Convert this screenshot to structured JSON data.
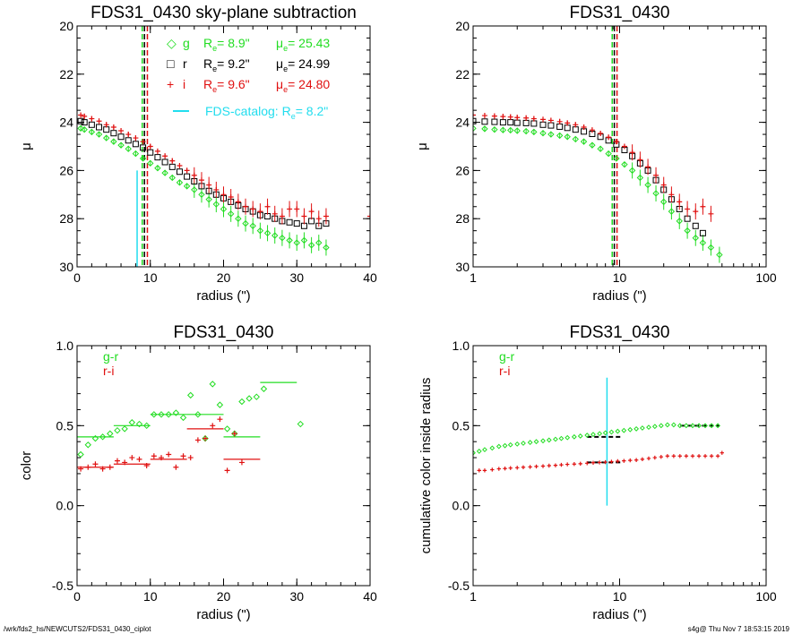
{
  "footer": {
    "path": "/wrk/fds2_hs/NEWCUTS2/FDS31_0430_ciplot",
    "stamp": "s4g@  Thu Nov  7 18:53:15 2019"
  },
  "chart_data": [
    {
      "type": "scatter",
      "title": "FDS31_0430 sky-plane subtraction",
      "xlabel": "radius (\")",
      "ylabel": "μ",
      "xlim": [
        0,
        40
      ],
      "ylim": [
        30,
        20
      ],
      "xscale": "linear",
      "xticks": [
        0,
        10,
        20,
        30,
        40
      ],
      "yticks": [
        20,
        22,
        24,
        26,
        28,
        30
      ],
      "legend": {
        "placement": "top-right",
        "entries": [
          {
            "marker": "◇",
            "band": "g",
            "re": "8.9\"",
            "mue": "25.43",
            "color": "#22dd22"
          },
          {
            "marker": "□",
            "band": "r",
            "re": "9.2\"",
            "mue": "24.99",
            "color": "#000000"
          },
          {
            "marker": "+",
            "band": "i",
            "re": "9.6\"",
            "mue": "24.80",
            "color": "#e01010"
          }
        ],
        "re_label": "R",
        "re_sub": "e",
        "mue_label": "μ",
        "mue_sub": "e",
        "catalog": {
          "label": "FDS-catalog: R",
          "sub": "e",
          "value": "8.2\"",
          "color": "#22ddee"
        }
      },
      "vlines": [
        {
          "x": 8.9,
          "color": "#22dd22",
          "dash": true
        },
        {
          "x": 9.2,
          "color": "#000000",
          "dash": true
        },
        {
          "x": 9.6,
          "color": "#e01010",
          "dash": true
        },
        {
          "x": 8.2,
          "color": "#22ddee",
          "y_from": 26.0,
          "y_to": 30
        }
      ],
      "series": [
        {
          "name": "g",
          "color": "#22dd22",
          "marker": "diamond",
          "x": [
            0.5,
            1,
            2,
            3,
            4,
            5,
            6,
            7,
            8,
            9,
            10,
            11,
            12,
            13,
            14,
            15,
            16,
            17,
            18,
            19,
            20,
            21,
            22,
            23,
            24,
            25,
            26,
            27,
            28,
            29,
            30,
            31,
            32,
            33,
            34
          ],
          "y": [
            24.25,
            24.3,
            24.4,
            24.5,
            24.65,
            24.8,
            24.95,
            25.1,
            25.3,
            25.5,
            25.7,
            25.9,
            26.1,
            26.3,
            26.5,
            26.65,
            26.8,
            27.0,
            27.2,
            27.4,
            27.6,
            27.8,
            28.0,
            28.2,
            28.3,
            28.5,
            28.6,
            28.7,
            28.8,
            28.9,
            29.0,
            28.9,
            29.1,
            29.0,
            29.2
          ]
        },
        {
          "name": "r",
          "color": "#000000",
          "marker": "square",
          "x": [
            0.5,
            1,
            2,
            3,
            4,
            5,
            6,
            7,
            8,
            9,
            10,
            11,
            12,
            13,
            14,
            15,
            16,
            17,
            18,
            19,
            20,
            21,
            22,
            23,
            24,
            25,
            26,
            27,
            28,
            29,
            30,
            31,
            32,
            33,
            34
          ],
          "y": [
            23.95,
            24.0,
            24.1,
            24.2,
            24.3,
            24.45,
            24.6,
            24.75,
            24.9,
            25.05,
            25.25,
            25.45,
            25.65,
            25.85,
            26.05,
            26.25,
            26.45,
            26.65,
            26.85,
            27.0,
            27.15,
            27.3,
            27.45,
            27.6,
            27.7,
            27.85,
            27.9,
            28.0,
            28.1,
            28.15,
            28.2,
            28.3,
            28.1,
            28.3,
            28.2
          ]
        },
        {
          "name": "i",
          "color": "#e01010",
          "marker": "plus",
          "x": [
            0.5,
            1,
            2,
            3,
            4,
            5,
            6,
            7,
            8,
            9,
            10,
            11,
            12,
            13,
            14,
            15,
            16,
            17,
            18,
            19,
            20,
            21,
            22,
            23,
            24,
            25,
            26,
            27,
            28,
            29,
            30,
            31,
            32,
            33,
            34,
            40
          ],
          "y": [
            23.7,
            23.75,
            23.85,
            23.95,
            24.1,
            24.2,
            24.35,
            24.5,
            24.65,
            24.8,
            25.0,
            25.2,
            25.4,
            25.6,
            25.8,
            26.0,
            26.2,
            26.4,
            26.6,
            26.8,
            27.0,
            27.1,
            27.3,
            27.5,
            27.6,
            27.7,
            27.5,
            27.8,
            27.9,
            27.6,
            27.6,
            27.9,
            27.7,
            28.0,
            27.9,
            27.9
          ]
        }
      ]
    },
    {
      "type": "scatter",
      "title": "FDS31_0430",
      "xlabel": "radius (\")",
      "ylabel": "μ",
      "xlim": [
        1,
        100
      ],
      "ylim": [
        30,
        20
      ],
      "xscale": "log",
      "xticks": [
        1,
        10,
        100
      ],
      "yticks": [
        20,
        22,
        24,
        26,
        28,
        30
      ],
      "vlines": [
        {
          "x": 8.9,
          "color": "#22dd22",
          "dash": true
        },
        {
          "x": 9.2,
          "color": "#000000",
          "dash": true
        },
        {
          "x": 9.6,
          "color": "#e01010",
          "dash": true
        }
      ],
      "series": [
        {
          "name": "g",
          "color": "#22dd22",
          "marker": "diamond",
          "x": [
            1,
            1.2,
            1.4,
            1.6,
            1.8,
            2,
            2.3,
            2.6,
            3,
            3.4,
            3.9,
            4.4,
            5,
            5.7,
            6.5,
            7.4,
            8.4,
            9.5,
            10.8,
            12.2,
            13.8,
            15.6,
            17.7,
            20,
            22.6,
            25.6,
            29,
            33,
            37,
            42,
            48
          ],
          "y": [
            24.25,
            24.27,
            24.3,
            24.32,
            24.33,
            24.35,
            24.37,
            24.4,
            24.45,
            24.5,
            24.55,
            24.6,
            24.7,
            24.8,
            24.95,
            25.1,
            25.3,
            25.5,
            25.75,
            26.0,
            26.3,
            26.6,
            26.95,
            27.3,
            27.7,
            28.1,
            28.5,
            28.8,
            29.0,
            29.2,
            29.5
          ]
        },
        {
          "name": "r",
          "color": "#000000",
          "marker": "square",
          "x": [
            1,
            1.2,
            1.4,
            1.6,
            1.8,
            2,
            2.3,
            2.6,
            3,
            3.4,
            3.9,
            4.4,
            5,
            5.7,
            6.5,
            7.4,
            8.4,
            9.5,
            10.8,
            12.2,
            13.8,
            15.6,
            17.7,
            20,
            22.6,
            25.6,
            29,
            33,
            37
          ],
          "y": [
            23.95,
            23.97,
            23.98,
            24.0,
            24.0,
            24.02,
            24.03,
            24.05,
            24.1,
            24.13,
            24.18,
            24.23,
            24.3,
            24.38,
            24.48,
            24.6,
            24.75,
            24.92,
            25.15,
            25.4,
            25.7,
            26.0,
            26.4,
            26.8,
            27.2,
            27.6,
            28.0,
            28.3,
            28.6
          ]
        },
        {
          "name": "i",
          "color": "#e01010",
          "marker": "plus",
          "x": [
            1,
            1.2,
            1.4,
            1.6,
            1.8,
            2,
            2.3,
            2.6,
            3,
            3.4,
            3.9,
            4.4,
            5,
            5.7,
            6.5,
            7.4,
            8.4,
            9.5,
            10.8,
            12.2,
            13.8,
            15.6,
            17.7,
            20,
            22.6,
            25.6,
            29,
            33,
            37,
            42
          ],
          "y": [
            23.7,
            23.72,
            23.74,
            23.76,
            23.78,
            23.8,
            23.82,
            23.85,
            23.88,
            23.92,
            23.97,
            24.03,
            24.1,
            24.2,
            24.32,
            24.46,
            24.62,
            24.8,
            25.0,
            25.25,
            25.55,
            25.85,
            26.2,
            26.6,
            27.0,
            27.3,
            27.6,
            27.7,
            27.5,
            27.8
          ]
        }
      ]
    },
    {
      "type": "scatter",
      "title": "FDS31_0430",
      "xlabel": "radius (\")",
      "ylabel": "color",
      "xlim": [
        0,
        40
      ],
      "ylim": [
        -0.5,
        1.0
      ],
      "xscale": "linear",
      "xticks": [
        0,
        10,
        20,
        30,
        40
      ],
      "yticks": [
        -0.5,
        0.0,
        0.5,
        1.0
      ],
      "legend": {
        "placement": "top-left",
        "entries": [
          {
            "label": "g-r",
            "color": "#22dd22"
          },
          {
            "label": "r-i",
            "color": "#e01010"
          }
        ]
      },
      "series": [
        {
          "name": "g-r",
          "color": "#22dd22",
          "marker": "diamond",
          "x": [
            0.5,
            1.5,
            2.5,
            3.5,
            4.5,
            5.5,
            6.5,
            7.5,
            8.5,
            9.5,
            10.5,
            11.5,
            12.5,
            13.5,
            14.5,
            15.5,
            16.5,
            17.5,
            18.5,
            19.5,
            20.5,
            21.5,
            22.5,
            23.5,
            24.5,
            25.5,
            30.5
          ],
          "y": [
            0.32,
            0.38,
            0.42,
            0.43,
            0.45,
            0.47,
            0.48,
            0.52,
            0.51,
            0.5,
            0.57,
            0.57,
            0.57,
            0.58,
            0.55,
            0.69,
            0.57,
            0.42,
            0.76,
            0.63,
            0.48,
            0.45,
            0.65,
            0.67,
            0.68,
            0.73,
            0.51
          ]
        },
        {
          "name": "r-i",
          "color": "#e01010",
          "marker": "plus",
          "x": [
            0.5,
            1.5,
            2.5,
            3.5,
            4.5,
            5.5,
            6.5,
            7.5,
            8.5,
            9.5,
            10.5,
            11.5,
            12.5,
            13.5,
            14.5,
            15.5,
            16.5,
            17.5,
            18.5,
            19.5,
            20.5,
            21.5,
            22.5
          ],
          "y": [
            0.23,
            0.24,
            0.26,
            0.23,
            0.24,
            0.28,
            0.27,
            0.3,
            0.29,
            0.25,
            0.31,
            0.3,
            0.32,
            0.24,
            0.31,
            0.3,
            0.41,
            0.42,
            0.5,
            0.54,
            0.22,
            0.45,
            0.27
          ]
        }
      ],
      "steps": [
        {
          "color": "#22dd22",
          "x0": 0,
          "x1": 5,
          "y": 0.43
        },
        {
          "color": "#22dd22",
          "x0": 5,
          "x1": 10,
          "y": 0.5
        },
        {
          "color": "#22dd22",
          "x0": 10,
          "x1": 15,
          "y": 0.57
        },
        {
          "color": "#22dd22",
          "x0": 15,
          "x1": 20,
          "y": 0.57
        },
        {
          "color": "#22dd22",
          "x0": 20,
          "x1": 25,
          "y": 0.43
        },
        {
          "color": "#22dd22",
          "x0": 25,
          "x1": 30,
          "y": 0.77
        },
        {
          "color": "#e01010",
          "x0": 0,
          "x1": 5,
          "y": 0.24
        },
        {
          "color": "#e01010",
          "x0": 5,
          "x1": 10,
          "y": 0.26
        },
        {
          "color": "#e01010",
          "x0": 10,
          "x1": 15,
          "y": 0.29
        },
        {
          "color": "#e01010",
          "x0": 15,
          "x1": 20,
          "y": 0.48
        },
        {
          "color": "#e01010",
          "x0": 20,
          "x1": 25,
          "y": 0.29
        }
      ]
    },
    {
      "type": "scatter",
      "title": "FDS31_0430",
      "xlabel": "radius (\")",
      "ylabel": "cumulative color inside radius",
      "xlim": [
        1,
        100
      ],
      "ylim": [
        -0.5,
        1.0
      ],
      "xscale": "log",
      "xticks": [
        1,
        10,
        100
      ],
      "yticks": [
        -0.5,
        0.0,
        0.5,
        1.0
      ],
      "legend": {
        "placement": "top-left",
        "entries": [
          {
            "label": "g-r",
            "color": "#22dd22"
          },
          {
            "label": "r-i",
            "color": "#e01010"
          }
        ]
      },
      "vlines": [
        {
          "x": 8.2,
          "color": "#22ddee",
          "y_from": 0.0,
          "y_to": 0.8
        }
      ],
      "hsegments": [
        {
          "x0": 6.0,
          "x1": 10.5,
          "y": 0.43,
          "color": "#000000",
          "dash": true
        },
        {
          "x0": 6.0,
          "x1": 10.5,
          "y": 0.27,
          "color": "#000000",
          "dash": true
        },
        {
          "x0": 26,
          "x1": 48,
          "y": 0.5,
          "color": "#000000",
          "dash": true
        }
      ],
      "series": [
        {
          "name": "g-r",
          "color": "#22dd22",
          "marker": "diamond",
          "x": [
            1.0,
            1.1,
            1.2,
            1.35,
            1.5,
            1.65,
            1.8,
            2.0,
            2.2,
            2.45,
            2.7,
            3.0,
            3.3,
            3.65,
            4.0,
            4.4,
            4.9,
            5.4,
            6.0,
            6.6,
            7.3,
            8.0,
            8.8,
            9.7,
            10.7,
            11.8,
            13.0,
            14.3,
            15.8,
            17.4,
            19.2,
            21.2,
            23.4,
            25.8,
            28.5,
            31.5,
            34.8,
            38.4,
            42.4,
            46.8
          ],
          "y": [
            0.33,
            0.34,
            0.35,
            0.36,
            0.37,
            0.375,
            0.38,
            0.385,
            0.39,
            0.395,
            0.4,
            0.405,
            0.41,
            0.415,
            0.42,
            0.425,
            0.43,
            0.435,
            0.44,
            0.445,
            0.45,
            0.455,
            0.46,
            0.465,
            0.47,
            0.475,
            0.48,
            0.485,
            0.49,
            0.495,
            0.5,
            0.505,
            0.505,
            0.5,
            0.5,
            0.5,
            0.5,
            0.5,
            0.5,
            0.5
          ]
        },
        {
          "name": "r-i",
          "color": "#e01010",
          "marker": "plus",
          "x": [
            1.0,
            1.1,
            1.2,
            1.35,
            1.5,
            1.65,
            1.8,
            2.0,
            2.2,
            2.45,
            2.7,
            3.0,
            3.3,
            3.65,
            4.0,
            4.4,
            4.9,
            5.4,
            6.0,
            6.6,
            7.3,
            8.0,
            8.8,
            9.7,
            10.7,
            11.8,
            13.0,
            14.3,
            15.8,
            17.4,
            19.2,
            21.2,
            23.4,
            25.8,
            28.5,
            31.5,
            34.8,
            38.4,
            42.4,
            46.8,
            50
          ],
          "y": [
            0.2,
            0.22,
            0.22,
            0.225,
            0.23,
            0.232,
            0.235,
            0.237,
            0.24,
            0.242,
            0.245,
            0.247,
            0.25,
            0.252,
            0.255,
            0.258,
            0.26,
            0.262,
            0.265,
            0.268,
            0.27,
            0.272,
            0.275,
            0.278,
            0.28,
            0.283,
            0.285,
            0.29,
            0.295,
            0.3,
            0.305,
            0.31,
            0.31,
            0.31,
            0.31,
            0.31,
            0.31,
            0.31,
            0.31,
            0.31,
            0.33
          ]
        }
      ]
    }
  ]
}
